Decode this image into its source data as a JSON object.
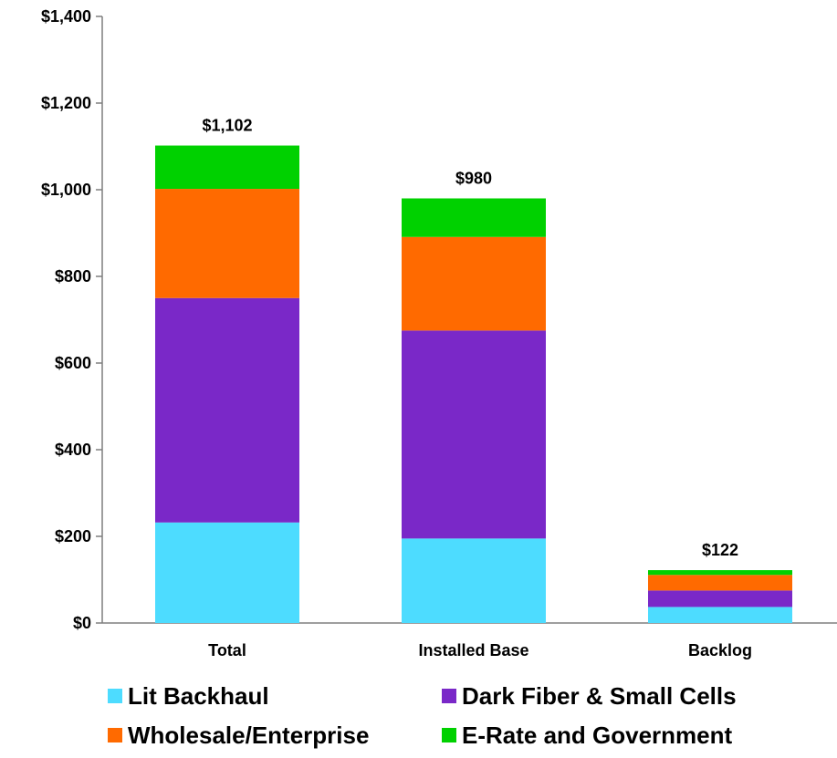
{
  "chart_data": {
    "type": "bar",
    "stacked": true,
    "title": "",
    "xlabel": "",
    "ylabel": "",
    "ylim": [
      0,
      1400
    ],
    "y_ticks": [
      0,
      200,
      400,
      600,
      800,
      1000,
      1200,
      1400
    ],
    "y_tick_labels": [
      "$0",
      "$200",
      "$400",
      "$600",
      "$800",
      "$1,000",
      "$1,200",
      "$1,400"
    ],
    "categories": [
      "Total",
      "Installed Base",
      "Backlog"
    ],
    "totals": [
      1102,
      980,
      122
    ],
    "total_labels": [
      "$1,102",
      "$980",
      "$122"
    ],
    "series": [
      {
        "name": "Lit Backhaul",
        "color": "#4ddcff",
        "values": [
          232,
          195,
          37
        ]
      },
      {
        "name": "Dark Fiber & Small Cells",
        "color": "#7a28c8",
        "values": [
          518,
          480,
          38
        ]
      },
      {
        "name": "Wholesale/Enterprise",
        "color": "#ff6a00",
        "values": [
          252,
          216,
          36
        ]
      },
      {
        "name": "E-Rate and Government",
        "color": "#00d100",
        "values": [
          100,
          89,
          11
        ]
      }
    ],
    "grid": false,
    "legend_position": "bottom"
  }
}
